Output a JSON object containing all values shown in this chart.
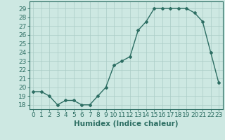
{
  "x": [
    0,
    1,
    2,
    3,
    4,
    5,
    6,
    7,
    8,
    9,
    10,
    11,
    12,
    13,
    14,
    15,
    16,
    17,
    18,
    19,
    20,
    21,
    22,
    23
  ],
  "y": [
    19.5,
    19.5,
    19.0,
    18.0,
    18.5,
    18.5,
    18.0,
    18.0,
    19.0,
    20.0,
    22.5,
    23.0,
    23.5,
    26.5,
    27.5,
    29.0,
    29.0,
    29.0,
    29.0,
    29.0,
    28.5,
    27.5,
    24.0,
    20.5
  ],
  "line_color": "#2d6e63",
  "marker": "D",
  "marker_size": 2.0,
  "bg_color": "#cde8e2",
  "grid_color": "#aaccc6",
  "xlabel": "Humidex (Indice chaleur)",
  "ylabel_ticks": [
    18,
    19,
    20,
    21,
    22,
    23,
    24,
    25,
    26,
    27,
    28,
    29
  ],
  "xlim": [
    -0.5,
    23.5
  ],
  "ylim": [
    17.5,
    29.8
  ],
  "xticks": [
    0,
    1,
    2,
    3,
    4,
    5,
    6,
    7,
    8,
    9,
    10,
    11,
    12,
    13,
    14,
    15,
    16,
    17,
    18,
    19,
    20,
    21,
    22,
    23
  ],
  "xlabel_fontsize": 7.5,
  "tick_fontsize": 6.5,
  "line_width": 1.0
}
